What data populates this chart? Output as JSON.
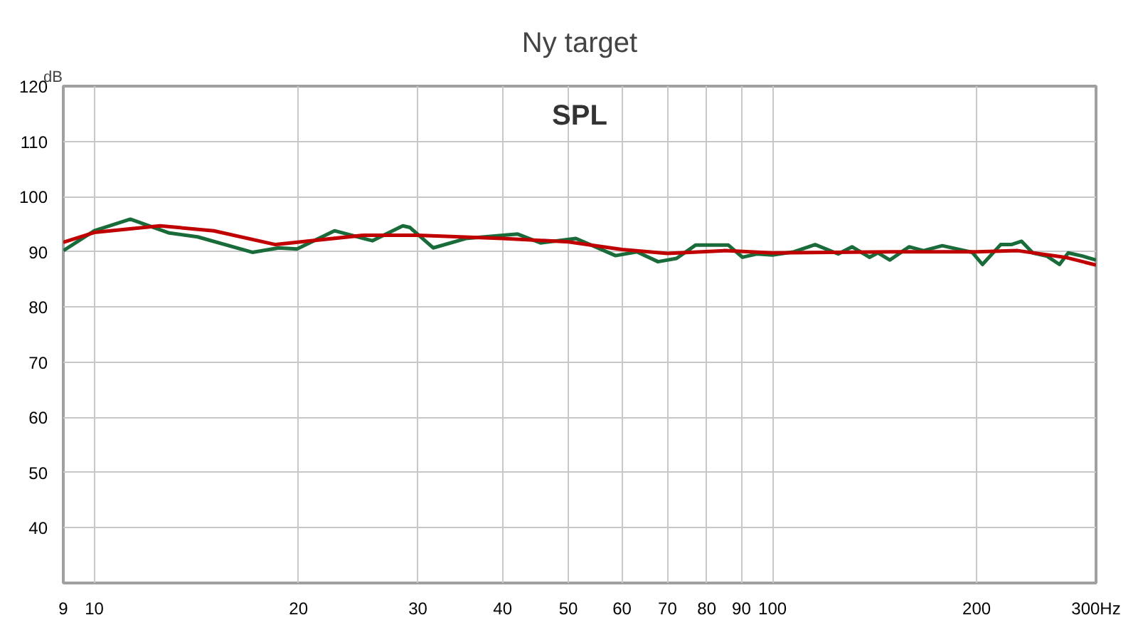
{
  "chart_data": {
    "type": "line",
    "title": "Ny target",
    "ylabel": "dB",
    "annotations": [
      "SPL"
    ],
    "log": "x",
    "grid": true,
    "marker": "none",
    "line_style": "solid",
    "xlim": [
      9,
      300
    ],
    "ylim": [
      30,
      120
    ],
    "xticks": [
      9,
      10,
      20,
      30,
      40,
      50,
      60,
      70,
      80,
      90,
      100,
      200,
      {
        "value": 300,
        "label": "300Hz"
      }
    ],
    "yticks": [
      40,
      50,
      60,
      70,
      80,
      90,
      100,
      110,
      120
    ],
    "series": [
      {
        "color": "#1a6b3a",
        "x": [
          9,
          10,
          11.3,
          12.9,
          14.2,
          17.1,
          18.7,
          19.9,
          22.6,
          25.7,
          28.5,
          29.2,
          31.6,
          35.3,
          42.1,
          45.5,
          51.3,
          58.7,
          63.1,
          67.8,
          72.2,
          77,
          86.1,
          90.3,
          94.8,
          100,
          107.6,
          115.6,
          125,
          131,
          139,
          143,
          149,
          159,
          167,
          178,
          197,
          204,
          217,
          225,
          233,
          242,
          254,
          265,
          273,
          287,
          300
        ],
        "values": [
          90.2,
          93.8,
          95.9,
          93.4,
          92.7,
          89.9,
          90.7,
          90.5,
          93.8,
          92,
          94.7,
          94.4,
          90.7,
          92.4,
          93.2,
          91.6,
          92.4,
          89.3,
          90,
          88.2,
          88.8,
          91.2,
          91.2,
          89,
          89.6,
          89.4,
          90,
          91.3,
          89.6,
          90.9,
          89,
          89.8,
          88.5,
          90.9,
          90.2,
          91.1,
          89.9,
          87.7,
          91.3,
          91.3,
          91.9,
          89.8,
          89.2,
          87.7,
          89.8,
          89.2,
          88.5
        ]
      },
      {
        "color": "#c00000",
        "x": [
          9,
          10,
          12.5,
          15,
          18.5,
          25,
          30,
          40,
          50,
          60,
          70,
          85,
          100,
          150,
          200,
          230,
          270,
          300
        ],
        "values": [
          91.7,
          93.5,
          94.7,
          93.8,
          91.3,
          93,
          93,
          92.4,
          91.8,
          90.4,
          89.7,
          90.2,
          89.8,
          90,
          90,
          90.2,
          89,
          87.6
        ]
      }
    ]
  }
}
